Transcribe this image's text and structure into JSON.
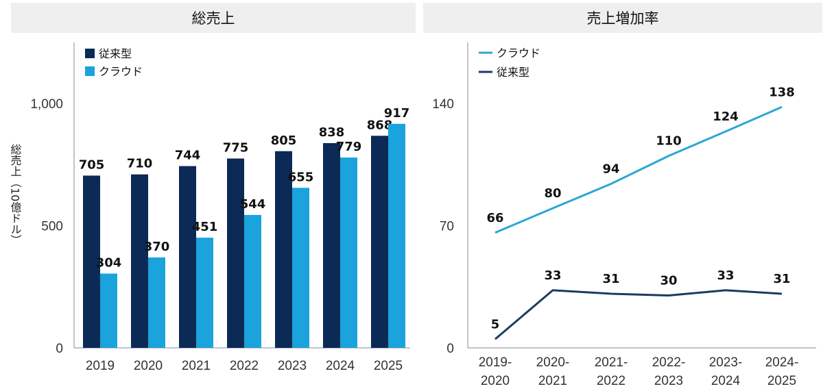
{
  "chart_data": [
    {
      "type": "bar",
      "title": "総売上",
      "xlabel": "",
      "ylabel": "総売上（10億ドル）",
      "ylim": [
        0,
        1250
      ],
      "yticks": [
        0,
        500,
        1000
      ],
      "ytick_labels": [
        "0",
        "500",
        "1,000"
      ],
      "categories": [
        "2019",
        "2020",
        "2021",
        "2022",
        "2023",
        "2024",
        "2025"
      ],
      "series": [
        {
          "name": "従来型",
          "color": "#0b2a55",
          "values": [
            705,
            710,
            744,
            775,
            805,
            838,
            868
          ]
        },
        {
          "name": "クラウド",
          "color": "#1aa3dc",
          "values": [
            304,
            370,
            451,
            544,
            655,
            779,
            917
          ]
        }
      ],
      "legend": "top-left",
      "grid": false
    },
    {
      "type": "line",
      "title": "売上増加率",
      "xlabel": "",
      "ylabel": "",
      "ylim": [
        0,
        175
      ],
      "yticks": [
        0,
        70,
        140
      ],
      "ytick_labels": [
        "0",
        "70",
        "140"
      ],
      "categories": [
        [
          "2019-",
          "2020"
        ],
        [
          "2020-",
          "2021"
        ],
        [
          "2021-",
          "2022"
        ],
        [
          "2022-",
          "2023"
        ],
        [
          "2023-",
          "2024"
        ],
        [
          "2024-",
          "2025"
        ]
      ],
      "series": [
        {
          "name": "クラウド",
          "color": "#2aa6d6",
          "values": [
            66,
            80,
            94,
            110,
            124,
            138
          ]
        },
        {
          "name": "従来型",
          "color": "#1b3a63",
          "values": [
            5,
            33,
            31,
            30,
            33,
            31
          ]
        }
      ],
      "legend": "top-left",
      "grid": false
    }
  ]
}
